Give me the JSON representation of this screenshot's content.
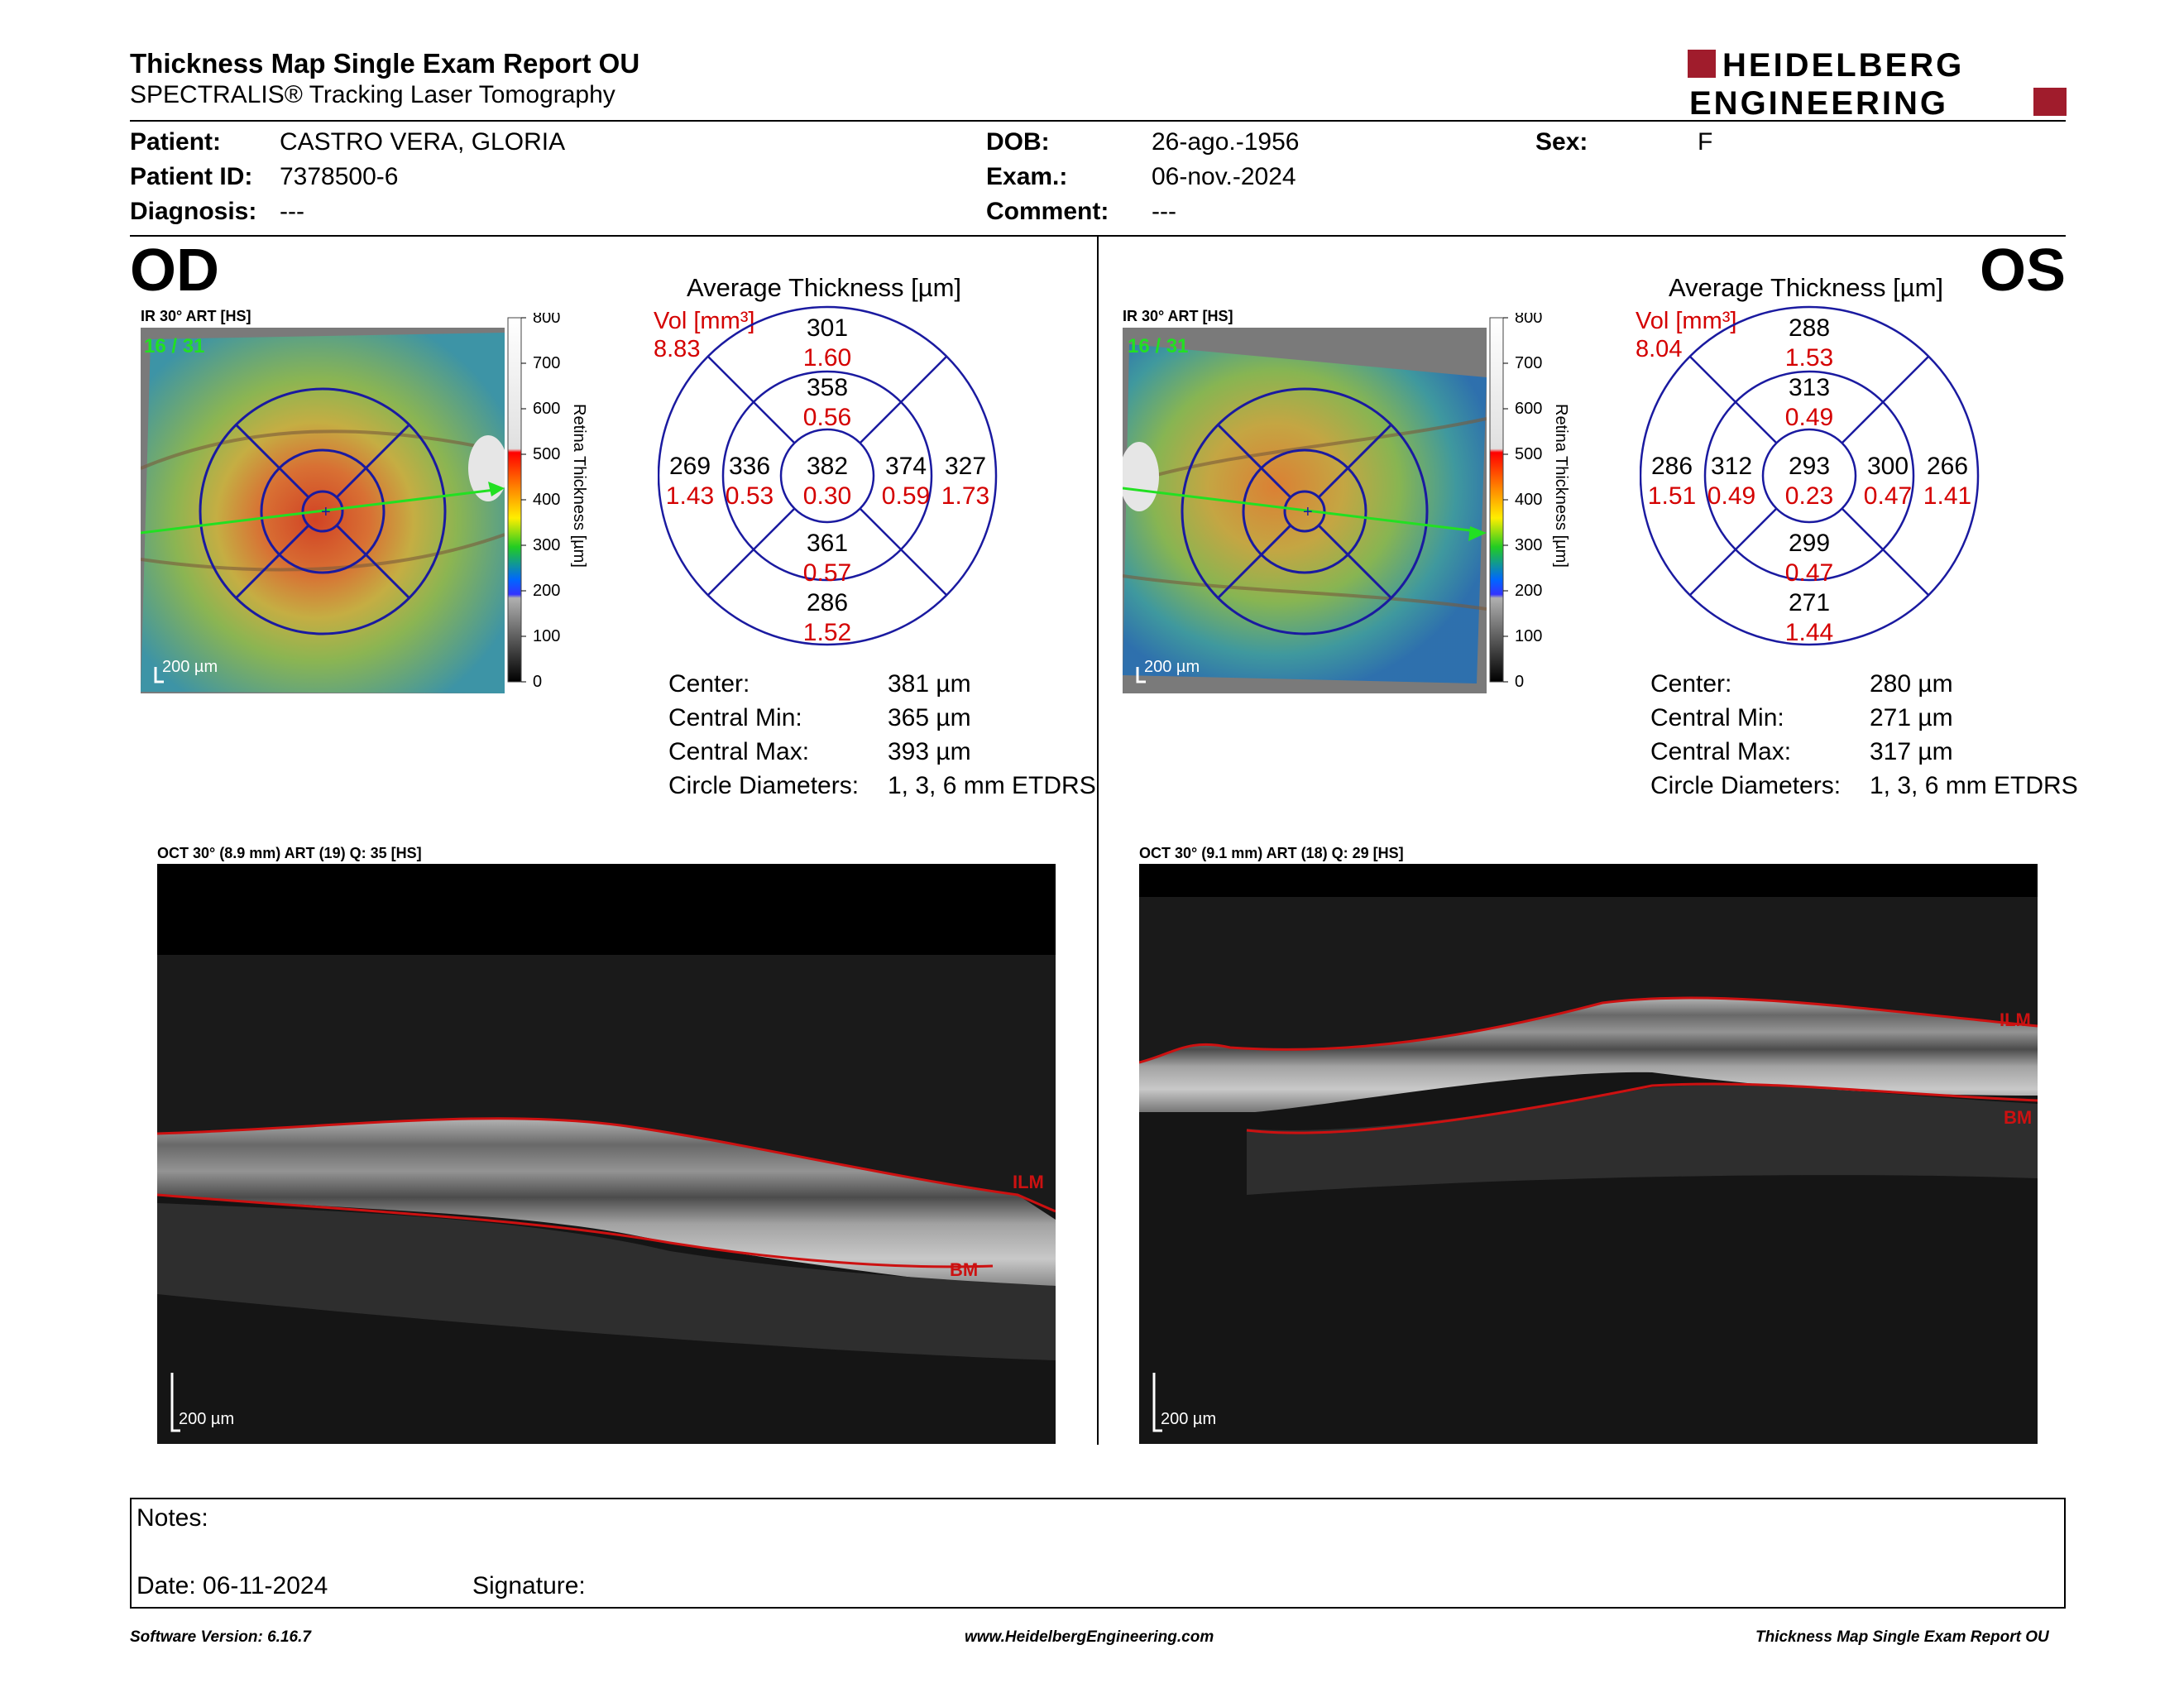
{
  "header": {
    "title": "Thickness Map Single Exam Report OU",
    "subtitle": "SPECTRALIS® Tracking Laser Tomography",
    "logo_line1": "HEIDELBERG",
    "logo_line2": "ENGINEERING"
  },
  "patient": {
    "patient_label": "Patient:",
    "patient_value": "CASTRO VERA, GLORIA",
    "id_label": "Patient ID:",
    "id_value": "7378500-6",
    "diagnosis_label": "Diagnosis:",
    "diagnosis_value": "---",
    "dob_label": "DOB:",
    "dob_value": "26-ago.-1956",
    "exam_label": "Exam.:",
    "exam_value": "06-nov.-2024",
    "comment_label": "Comment:",
    "comment_value": "---",
    "sex_label": "Sex:",
    "sex_value": "F"
  },
  "colorbar": {
    "ticks": [
      "800",
      "700",
      "600",
      "500",
      "400",
      "300",
      "200",
      "100",
      "0"
    ],
    "label": "Retina  Thickness [µm]"
  },
  "od": {
    "eye": "OD",
    "ir_title": "IR 30° ART [HS]",
    "frames": "16 / 31",
    "scale": "200 µm",
    "avg_title": "Average Thickness [µm]",
    "vol_label": "Vol [mm³]",
    "vol_value": "8.83",
    "sectors": {
      "outer_sup": {
        "thk": "301",
        "vol": "1.60"
      },
      "inner_sup": {
        "thk": "358",
        "vol": "0.56"
      },
      "outer_left": {
        "thk": "269",
        "vol": "1.43"
      },
      "inner_left": {
        "thk": "336",
        "vol": "0.53"
      },
      "center": {
        "thk": "382",
        "vol": "0.30"
      },
      "inner_right": {
        "thk": "374",
        "vol": "0.59"
      },
      "outer_right": {
        "thk": "327",
        "vol": "1.73"
      },
      "inner_inf": {
        "thk": "361",
        "vol": "0.57"
      },
      "outer_inf": {
        "thk": "286",
        "vol": "1.52"
      }
    },
    "stats": {
      "center_label": "Center:",
      "center_value": "381 µm",
      "min_label": "Central Min:",
      "min_value": "365 µm",
      "max_label": "Central Max:",
      "max_value": "393 µm",
      "diam_label": "Circle Diameters:",
      "diam_value": "1, 3, 6 mm ETDRS"
    },
    "oct_title": "OCT 30° (8.9 mm) ART (19) Q: 35 [HS]",
    "ilm": "ILM",
    "bm": "BM",
    "oct_scale": "200 µm"
  },
  "os": {
    "eye": "OS",
    "ir_title": "IR 30° ART [HS]",
    "frames": "16 / 31",
    "scale": "200 µm",
    "avg_title": "Average Thickness [µm]",
    "vol_label": "Vol [mm³]",
    "vol_value": "8.04",
    "sectors": {
      "outer_sup": {
        "thk": "288",
        "vol": "1.53"
      },
      "inner_sup": {
        "thk": "313",
        "vol": "0.49"
      },
      "outer_left": {
        "thk": "286",
        "vol": "1.51"
      },
      "inner_left": {
        "thk": "312",
        "vol": "0.49"
      },
      "center": {
        "thk": "293",
        "vol": "0.23"
      },
      "inner_right": {
        "thk": "300",
        "vol": "0.47"
      },
      "outer_right": {
        "thk": "266",
        "vol": "1.41"
      },
      "inner_inf": {
        "thk": "299",
        "vol": "0.47"
      },
      "outer_inf": {
        "thk": "271",
        "vol": "1.44"
      }
    },
    "stats": {
      "center_label": "Center:",
      "center_value": "280 µm",
      "min_label": "Central Min:",
      "min_value": "271 µm",
      "max_label": "Central Max:",
      "max_value": "317 µm",
      "diam_label": "Circle Diameters:",
      "diam_value": "1, 3, 6 mm ETDRS"
    },
    "oct_title": "OCT 30° (9.1 mm) ART (18) Q: 29 [HS]",
    "ilm": "ILM",
    "bm": "BM",
    "oct_scale": "200 µm"
  },
  "notes": {
    "notes_label": "Notes:",
    "date_label": "Date: 06-11-2024",
    "signature_label": "Signature:"
  },
  "footer": {
    "software": "Software Version: 6.16.7",
    "website": "www.HeidelbergEngineering.com",
    "report": "Thickness Map Single Exam Report OU"
  },
  "colors": {
    "grid_blue": "#1a1aa0",
    "volume_red": "#d40000",
    "logo_red": "#a01c2c",
    "scan_line": "#22e022",
    "ilm_bm_red": "#cc1111"
  }
}
